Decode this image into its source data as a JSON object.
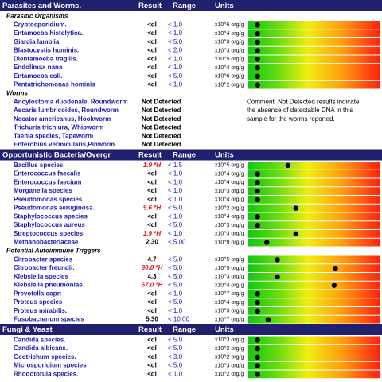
{
  "columns": [
    "Result",
    "Range",
    "Units"
  ],
  "sections": [
    {
      "title": "Parasites and Worms.",
      "groups": [
        {
          "title": "Parasitic Organisms",
          "rows": [
            {
              "name": "Cryptosporidium.",
              "result": "<dl",
              "range": "< 1.0",
              "units": "x10^6 org/g",
              "level": 7
            },
            {
              "name": "Entamoeba histolytica.",
              "result": "<dl",
              "range": "< 1.0",
              "units": "x10^4 org/g",
              "level": 7
            },
            {
              "name": "Giardia lamblia.",
              "result": "<dl",
              "range": "< 5.0",
              "units": "x10^3 org/g",
              "level": 7
            },
            {
              "name": "Blastocystis hominis.",
              "result": "<dl",
              "range": "< 2.0",
              "units": "x10^3 org/g",
              "level": 7
            },
            {
              "name": "Dientamoeba fragilis.",
              "result": "<dl",
              "range": "< 1.0",
              "units": "x10^5 org/g",
              "level": 7
            },
            {
              "name": "Endolimax nana",
              "result": "<dl",
              "range": "< 1.0",
              "units": "x10^4 org/g",
              "level": 7
            },
            {
              "name": "Entamoeba coli.",
              "result": "<dl",
              "range": "< 5.0",
              "units": "x10^6 org/g",
              "level": 7
            },
            {
              "name": "Pentatrichomonas hominis",
              "result": "<dl",
              "range": "< 1.0",
              "units": "x10^2 org/g",
              "level": 7
            }
          ]
        },
        {
          "title": "Worms",
          "comment": [
            "Comment: Not Detected results indicate",
            "the absence of detectable DNA in this",
            "sample for the worms reported."
          ],
          "rows": [
            {
              "name": "Ancylostoma duodenale, Roundworm",
              "result": "Not Detected"
            },
            {
              "name": "Ascaris lumbricoides, Roundworm",
              "result": "Not Detected"
            },
            {
              "name": "Necator americanus, Hookworm",
              "result": "Not Detected"
            },
            {
              "name": "Trichuris trichiura, Whipworm",
              "result": "Not Detected"
            },
            {
              "name": "Taenia species, Tapeworm",
              "result": "Not Detected"
            },
            {
              "name": "Enterobius vermicularis,Pinworm",
              "result": "Not Detected"
            }
          ]
        }
      ]
    },
    {
      "title": "Opportunistic Bacteria/Overgr",
      "groups": [
        {
          "rows": [
            {
              "name": "Bacillus species.",
              "result": "1.9 *H",
              "flagged": true,
              "range": "< 1.5",
              "units": "x10^5 org/g",
              "level": 30
            },
            {
              "name": "Enterococcus faecalis",
              "result": "<dl",
              "range": "< 1.0",
              "units": "x10^4 org/g",
              "level": 7
            },
            {
              "name": "Enterococcus faecium",
              "result": "<dl",
              "range": "< 1.0",
              "units": "x10^4 org/g",
              "level": 7
            },
            {
              "name": "Morganella species",
              "result": "<dl",
              "range": "< 1.0",
              "units": "x10^3 org/g",
              "level": 7
            },
            {
              "name": "Pseudomonas species",
              "result": "<dl",
              "range": "< 1.0",
              "units": "x10^4 org/g",
              "level": 7
            },
            {
              "name": "Pseudomonas aeruginosa.",
              "result": "9.6 *H",
              "flagged": true,
              "range": "< 5.0",
              "units": "x10^2 org/g",
              "level": 36
            },
            {
              "name": "Staphylococcus species",
              "result": "<dl",
              "range": "< 1.0",
              "units": "x10^4 org/g",
              "level": 7
            },
            {
              "name": "Staphylococcus aureus",
              "result": "<dl",
              "range": "< 5.0",
              "units": "x10^3 org/g",
              "level": 7
            },
            {
              "name": "Streptococcus species",
              "result": "1.9 *H",
              "flagged": true,
              "range": "< 1.0",
              "units": "x10^3 org/g",
              "level": 36
            },
            {
              "name": "Methanobacteriaceae",
              "result": "2.30",
              "range": "< 5.00",
              "units": "x10^9 org/g",
              "level": 14
            }
          ]
        },
        {
          "title": "Potential Autoimmune Triggers",
          "rows": [
            {
              "name": "Citrobacter species",
              "result": "4.7",
              "range": "< 5.0",
              "units": "x10^5 org/g",
              "level": 22
            },
            {
              "name": "Citrobacter freundii.",
              "result": "80.0 *H",
              "flagged": true,
              "range": "< 5.0",
              "units": "x10^5 org/g",
              "level": 66
            },
            {
              "name": "Klebsiella species",
              "result": "4.3",
              "range": "< 5.0",
              "units": "x10^3 org/g",
              "level": 22
            },
            {
              "name": "Klebsiella pneumoniae.",
              "result": "67.0 *H",
              "flagged": true,
              "range": "< 5.0",
              "units": "x10^4 org/g",
              "level": 65
            },
            {
              "name": "Prevotella copri",
              "result": "<dl",
              "range": "< 1.0",
              "units": "x10^7 org/g",
              "level": 7
            },
            {
              "name": "Proteus species",
              "result": "<dl",
              "range": "< 5.0",
              "units": "x10^4 org/g",
              "level": 7
            },
            {
              "name": "Proteus mirabilis.",
              "result": "<dl",
              "range": "< 1.0",
              "units": "x10^3 org/g",
              "level": 7
            },
            {
              "name": "Fusobacterium species",
              "result": "5.30",
              "range": "< 10.00",
              "units": "x10^7 org/g",
              "level": 15
            }
          ]
        }
      ]
    },
    {
      "title": "Fungi & Yeast",
      "groups": [
        {
          "rows": [
            {
              "name": "Candida species.",
              "result": "<dl",
              "range": "< 5.0",
              "units": "x10^3 org/g",
              "level": 7
            },
            {
              "name": "Candida albicans.",
              "result": "<dl",
              "range": "< 5.0",
              "units": "x10^2 org/g",
              "level": 7
            },
            {
              "name": "Geotrichum species.",
              "result": "<dl",
              "range": "< 3.0",
              "units": "x10^2 org/g",
              "level": 7
            },
            {
              "name": "Microsporidium species",
              "result": "<dl",
              "range": "< 5.0",
              "units": "x10^3 org/g",
              "level": 7
            },
            {
              "name": "Rhodotorula species.",
              "result": "<dl",
              "range": "< 1.0",
              "units": "x10^2 org/g",
              "level": 7
            }
          ]
        }
      ]
    }
  ]
}
